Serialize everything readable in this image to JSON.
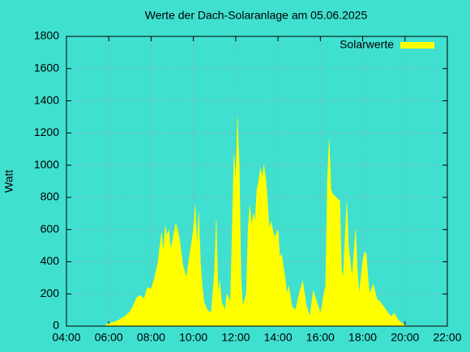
{
  "chart_data": {
    "type": "area",
    "title": "Werte der Dach-Solaranlage am 05.06.2025",
    "ylabel": "Watt",
    "xlim": [
      "04:00",
      "22:00"
    ],
    "xticks": [
      "04:00",
      "06:00",
      "08:00",
      "10:00",
      "12:00",
      "14:00",
      "16:00",
      "18:00",
      "20:00",
      "22:00"
    ],
    "ylim": [
      0,
      1800
    ],
    "yticks": [
      0,
      200,
      400,
      600,
      800,
      1000,
      1200,
      1400,
      1600,
      1800
    ],
    "grid": true,
    "legend": "top-right",
    "series": [
      {
        "name": "Solarwerte",
        "color": "#ffff00",
        "x": [
          "05:50",
          "06:00",
          "06:15",
          "06:30",
          "06:45",
          "07:00",
          "07:10",
          "07:20",
          "07:30",
          "07:40",
          "07:50",
          "08:00",
          "08:10",
          "08:20",
          "08:25",
          "08:30",
          "08:35",
          "08:40",
          "08:45",
          "08:50",
          "08:55",
          "09:00",
          "09:10",
          "09:15",
          "09:20",
          "09:30",
          "09:40",
          "09:50",
          "10:00",
          "10:05",
          "10:10",
          "10:15",
          "10:20",
          "10:25",
          "10:30",
          "10:40",
          "10:50",
          "10:55",
          "11:00",
          "11:05",
          "11:10",
          "11:15",
          "11:20",
          "11:30",
          "11:35",
          "11:45",
          "11:50",
          "11:55",
          "12:00",
          "12:05",
          "12:10",
          "12:15",
          "12:20",
          "12:30",
          "12:35",
          "12:40",
          "12:45",
          "12:50",
          "12:55",
          "13:00",
          "13:05",
          "13:10",
          "13:15",
          "13:20",
          "13:25",
          "13:30",
          "13:35",
          "13:40",
          "13:50",
          "14:00",
          "14:05",
          "14:10",
          "14:20",
          "14:25",
          "14:30",
          "14:40",
          "14:50",
          "15:00",
          "15:10",
          "15:20",
          "15:30",
          "15:40",
          "15:50",
          "16:00",
          "16:05",
          "16:10",
          "16:15",
          "16:20",
          "16:25",
          "16:30",
          "16:35",
          "16:45",
          "16:55",
          "17:00",
          "17:05",
          "17:10",
          "17:15",
          "17:20",
          "17:25",
          "17:30",
          "17:40",
          "17:45",
          "17:50",
          "17:55",
          "18:00",
          "18:05",
          "18:10",
          "18:15",
          "18:20",
          "18:30",
          "18:40",
          "18:50",
          "19:00",
          "19:10",
          "19:20",
          "19:30",
          "19:40",
          "19:50",
          "20:00",
          "20:05"
        ],
        "values": [
          5,
          15,
          25,
          40,
          60,
          90,
          130,
          180,
          190,
          170,
          240,
          230,
          300,
          400,
          500,
          580,
          450,
          620,
          560,
          600,
          480,
          520,
          640,
          600,
          550,
          380,
          300,
          450,
          600,
          750,
          500,
          700,
          400,
          250,
          150,
          100,
          80,
          200,
          350,
          660,
          200,
          280,
          150,
          100,
          200,
          150,
          600,
          1070,
          900,
          1290,
          1000,
          300,
          120,
          200,
          600,
          750,
          620,
          700,
          650,
          850,
          900,
          980,
          920,
          1000,
          920,
          780,
          600,
          650,
          550,
          600,
          420,
          450,
          300,
          200,
          250,
          120,
          100,
          200,
          280,
          130,
          60,
          220,
          150,
          80,
          130,
          200,
          250,
          900,
          1160,
          850,
          820,
          800,
          780,
          350,
          300,
          550,
          770,
          500,
          400,
          300,
          600,
          350,
          200,
          300,
          400,
          460,
          450,
          300,
          200,
          260,
          170,
          150,
          120,
          90,
          60,
          80,
          40,
          20,
          5,
          0
        ]
      }
    ]
  }
}
